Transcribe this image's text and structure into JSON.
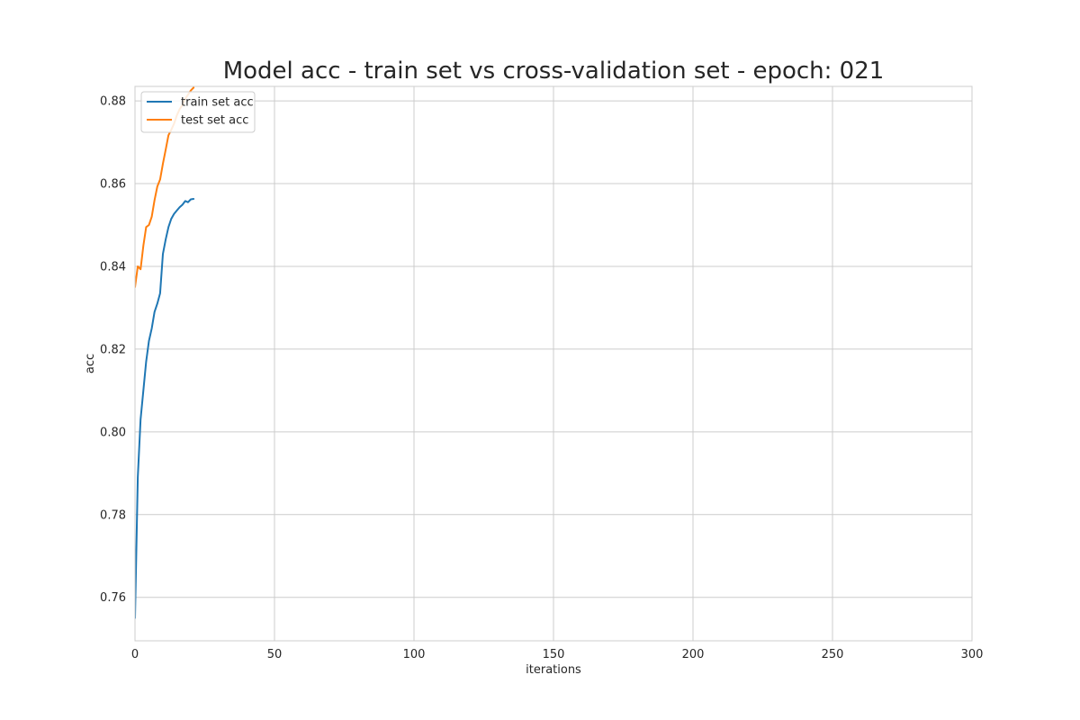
{
  "chart_data": {
    "type": "line",
    "title": "Model acc - train set vs cross-validation set - epoch: 021",
    "xlabel": "iterations",
    "ylabel": "acc",
    "xlim": [
      0,
      300
    ],
    "ylim": [
      0.7495,
      0.8835
    ],
    "xticks": [
      0,
      50,
      100,
      150,
      200,
      250,
      300
    ],
    "xtick_labels": [
      "0",
      "50",
      "100",
      "150",
      "200",
      "250",
      "300"
    ],
    "yticks": [
      0.76,
      0.78,
      0.8,
      0.82,
      0.84,
      0.86,
      0.88
    ],
    "ytick_labels": [
      "0.76",
      "0.78",
      "0.80",
      "0.82",
      "0.84",
      "0.86",
      "0.88"
    ],
    "grid": true,
    "legend_position": "upper-left",
    "series": [
      {
        "name": "train set acc",
        "color": "#1f77b4",
        "x": [
          0,
          1,
          2,
          3,
          4,
          5,
          6,
          7,
          8,
          9,
          10,
          11,
          12,
          13,
          14,
          15,
          16,
          17,
          18,
          19,
          20,
          21
        ],
        "y": [
          0.755,
          0.789,
          0.803,
          0.81,
          0.817,
          0.822,
          0.825,
          0.829,
          0.831,
          0.8335,
          0.843,
          0.8465,
          0.8495,
          0.8515,
          0.8527,
          0.8535,
          0.8543,
          0.8549,
          0.8558,
          0.8555,
          0.8562,
          0.8563
        ]
      },
      {
        "name": "test set acc",
        "color": "#ff7f0e",
        "x": [
          0,
          1,
          2,
          3,
          4,
          5,
          6,
          7,
          8,
          9,
          10,
          11,
          12,
          13,
          14,
          15,
          16,
          17,
          18,
          19,
          20,
          21
        ],
        "y": [
          0.835,
          0.84,
          0.8393,
          0.845,
          0.8495,
          0.85,
          0.852,
          0.856,
          0.8593,
          0.861,
          0.8648,
          0.8682,
          0.8717,
          0.873,
          0.8745,
          0.8765,
          0.878,
          0.879,
          0.8805,
          0.8815,
          0.8825,
          0.8832
        ]
      }
    ]
  }
}
